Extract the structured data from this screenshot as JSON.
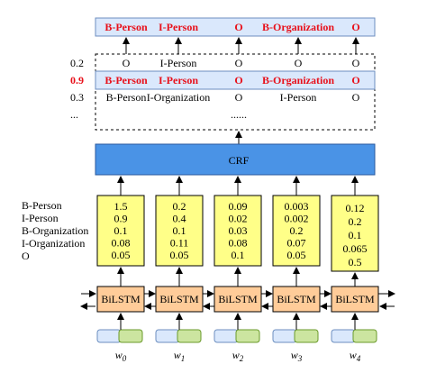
{
  "output_sequence": [
    "B-Person",
    "I-Person",
    "O",
    "B-Organization",
    "O"
  ],
  "candidate_paths": [
    {
      "score": "0.2",
      "labels": [
        "O",
        "I-Person",
        "O",
        "O",
        "O"
      ],
      "best": false
    },
    {
      "score": "0.9",
      "labels": [
        "B-Person",
        "I-Person",
        "O",
        "B-Organization",
        "O"
      ],
      "best": true
    },
    {
      "score": "0.3",
      "labels": [
        "B-Person",
        "I-Organization",
        "O",
        "I-Person",
        "O"
      ],
      "best": false
    }
  ],
  "more_paths": "...",
  "more_labels": "......",
  "crf_label": "CRF",
  "tag_labels": [
    "B-Person",
    "I-Person",
    "B-Organization",
    "I-Organization",
    "O"
  ],
  "emission_scores": [
    [
      "1.5",
      "0.9",
      "0.1",
      "0.08",
      "0.05"
    ],
    [
      "0.2",
      "0.4",
      "0.1",
      "0.11",
      "0.05"
    ],
    [
      "0.09",
      "0.02",
      "0.03",
      "0.08",
      "0.1"
    ],
    [
      "0.003",
      "0.002",
      "0.2",
      "0.07",
      "0.05"
    ],
    [
      "0.12",
      "0.2",
      "0.1",
      "0.065",
      "0.5"
    ]
  ],
  "bilstm_label": "BiLSTM",
  "word_base": "w",
  "word_indices": [
    "0",
    "1",
    "2",
    "3",
    "4"
  ],
  "colors": {
    "header_fill": "#dae8fc",
    "header_stroke": "#6c8ebf",
    "highlight_text": "#e8101a",
    "crf_fill": "#4a93e6",
    "score_fill": "#ffff88",
    "bilstm_fill": "#ffcc99",
    "embed_left": "#dae8fc",
    "embed_right": "#cce5a0"
  }
}
